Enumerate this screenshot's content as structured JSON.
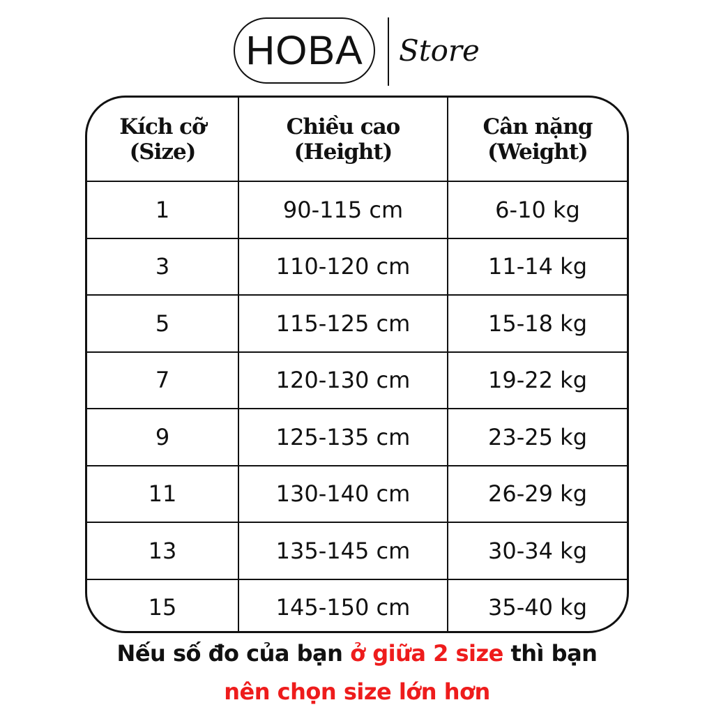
{
  "brand": {
    "name": "HOBA",
    "suffix": "Store"
  },
  "table": {
    "headers": [
      {
        "line1": "Kích cỡ",
        "line2": "(Size)"
      },
      {
        "line1": "Chiều cao",
        "line2": "(Height)"
      },
      {
        "line1": "Cân nặng",
        "line2": "(Weight)"
      }
    ],
    "rows": [
      [
        "1",
        "90-115 cm",
        "6-10 kg"
      ],
      [
        "3",
        "110-120 cm",
        "11-14 kg"
      ],
      [
        "5",
        "115-125 cm",
        "15-18 kg"
      ],
      [
        "7",
        "120-130 cm",
        "19-22 kg"
      ],
      [
        "9",
        "125-135 cm",
        "23-25 kg"
      ],
      [
        "11",
        "130-140 cm",
        "26-29 kg"
      ],
      [
        "13",
        "135-145 cm",
        "30-34 kg"
      ],
      [
        "15",
        "145-150 cm",
        "35-40 kg"
      ]
    ]
  },
  "note": {
    "part1": "Nếu số đo của bạn ",
    "part2_highlight": "ở giữa 2 size",
    "part3": " thì bạn",
    "line2_highlight": "nên chọn size lớn hơn",
    "highlight_color": "#ee1c1c"
  }
}
